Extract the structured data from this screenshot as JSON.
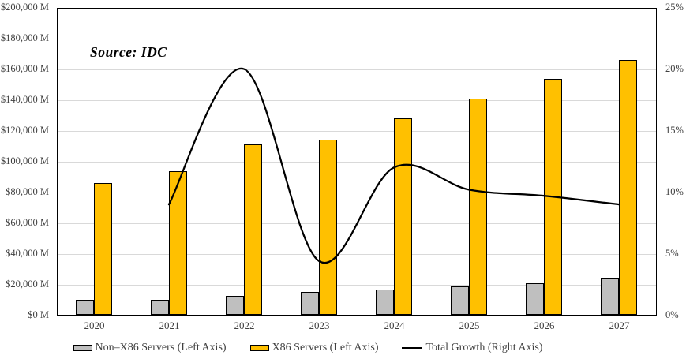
{
  "chart_data": {
    "type": "bar+line",
    "annotation": "Source: IDC",
    "categories": [
      "2020",
      "2021",
      "2022",
      "2023",
      "2024",
      "2025",
      "2026",
      "2027"
    ],
    "series": [
      {
        "name": "Non–X86 Servers (Left Axis)",
        "type": "bar",
        "axis": "left",
        "color": "#bfbfbf",
        "values": [
          9500,
          9500,
          12500,
          15000,
          16500,
          18500,
          20500,
          24000
        ]
      },
      {
        "name": "X86 Servers (Left Axis)",
        "type": "bar",
        "axis": "left",
        "color": "#ffc000",
        "values": [
          85500,
          93500,
          111000,
          114000,
          127500,
          140500,
          153500,
          165500
        ]
      },
      {
        "name": "Total Growth (Right Axis)",
        "type": "line",
        "axis": "right",
        "color": "#000000",
        "values": [
          null,
          9.0,
          20.0,
          4.4,
          12.0,
          10.2,
          9.7,
          9.0
        ]
      }
    ],
    "left_axis": {
      "min": 0,
      "max": 200000,
      "step": 20000,
      "tick_labels": [
        "$0 M",
        "$20,000 M",
        "$40,000 M",
        "$60,000 M",
        "$80,000 M",
        "$100,000 M",
        "$120,000 M",
        "$140,000 M",
        "$160,000 M",
        "$180,000 M",
        "$200,000 M"
      ]
    },
    "right_axis": {
      "min": 0,
      "max": 25,
      "step": 5,
      "tick_labels": [
        "0%",
        "5%",
        "10%",
        "15%",
        "20%",
        "25%"
      ]
    },
    "grid": true,
    "legend_position": "bottom"
  },
  "colors": {
    "gridline": "#d9d9d9",
    "frame": "#000000",
    "axis_text": "#404040"
  }
}
